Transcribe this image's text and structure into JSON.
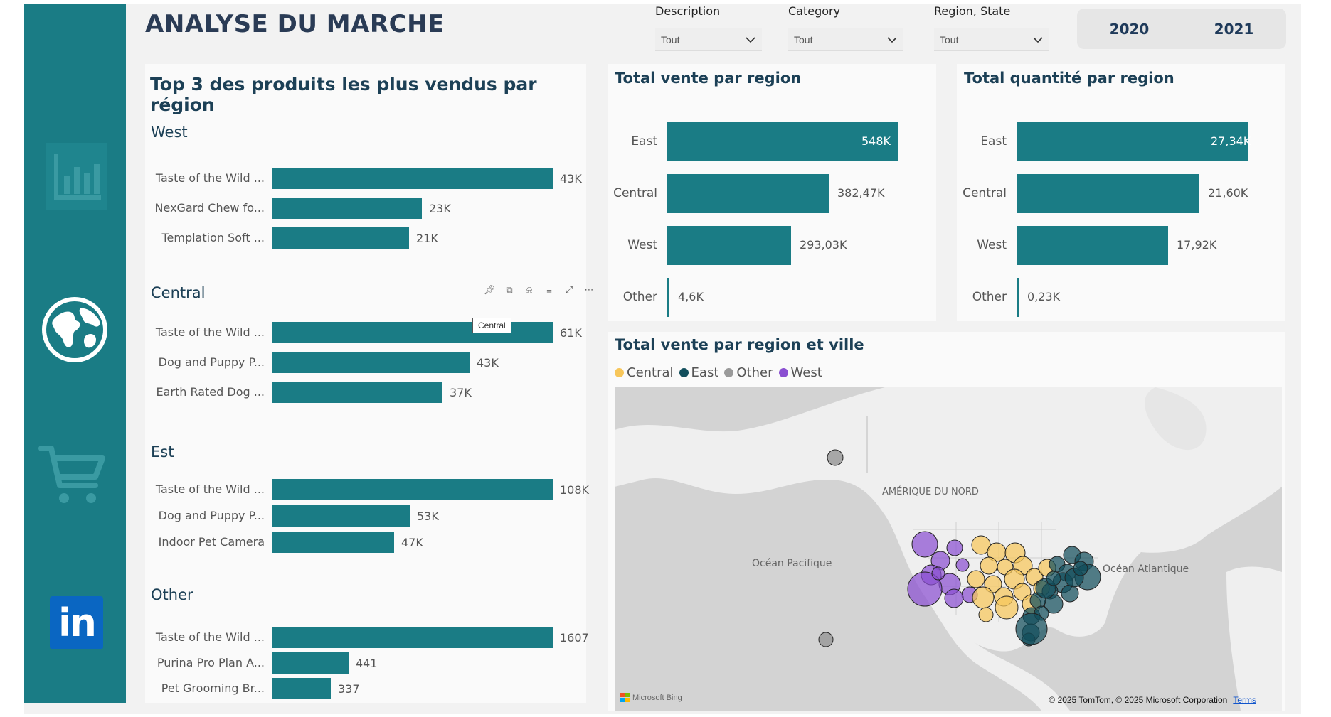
{
  "page": {
    "title": "ANALYSE DU MARCHE"
  },
  "nav": {
    "items": [
      {
        "name": "chart-icon"
      },
      {
        "name": "globe-icon"
      },
      {
        "name": "cart-icon"
      },
      {
        "name": "linkedin-icon",
        "label": "in"
      }
    ]
  },
  "slicers": {
    "description": {
      "label": "Description",
      "value": "Tout"
    },
    "category": {
      "label": "Category",
      "value": "Tout"
    },
    "region": {
      "label": "Region, State",
      "value": "Tout"
    }
  },
  "years": [
    "2020",
    "2021"
  ],
  "colors": {
    "accent": "#1a7c85",
    "central": "#f7c65a",
    "east": "#124e5c",
    "other": "#9a9a9a",
    "west": "#8a4fd1"
  },
  "top3": {
    "title": "Top 3 des produits les plus vendus par région",
    "tooltip": "Central",
    "groups": [
      {
        "name": "West",
        "items": [
          {
            "label": "Taste of the Wild ...",
            "value": 43,
            "display": "43K"
          },
          {
            "label": "NexGard Chew fo...",
            "value": 23,
            "display": "23K"
          },
          {
            "label": "Templation Soft ...",
            "value": 21,
            "display": "21K"
          }
        ]
      },
      {
        "name": "Central",
        "items": [
          {
            "label": "Taste of the Wild ...",
            "value": 61,
            "display": "61K"
          },
          {
            "label": "Dog and Puppy P...",
            "value": 43,
            "display": "43K"
          },
          {
            "label": "Earth Rated Dog ...",
            "value": 37,
            "display": "37K"
          }
        ]
      },
      {
        "name": "Est",
        "items": [
          {
            "label": "Taste of the Wild ...",
            "value": 108,
            "display": "108K"
          },
          {
            "label": "Dog and Puppy P...",
            "value": 53,
            "display": "53K"
          },
          {
            "label": "Indoor Pet Camera",
            "value": 47,
            "display": "47K"
          }
        ]
      },
      {
        "name": "Other",
        "items": [
          {
            "label": "Taste of the Wild ...",
            "value": 1607,
            "display": "1607"
          },
          {
            "label": "Purina Pro Plan A...",
            "value": 441,
            "display": "441"
          },
          {
            "label": "Pet Grooming Br...",
            "value": 337,
            "display": "337"
          }
        ]
      }
    ]
  },
  "chart_data": [
    {
      "type": "bar",
      "title": "Total vente par region",
      "categories": [
        "East",
        "Central",
        "West",
        "Other"
      ],
      "values": [
        548,
        382.47,
        293.03,
        4.6
      ],
      "labels": [
        "548K",
        "382,47K",
        "293,03K",
        "4,6K"
      ]
    },
    {
      "type": "bar",
      "title": "Total quantité par region",
      "categories": [
        "East",
        "Central",
        "West",
        "Other"
      ],
      "values": [
        27.34,
        21.6,
        17.92,
        0.23
      ],
      "labels": [
        "27,34K",
        "21,60K",
        "17,92K",
        "0,23K"
      ]
    }
  ],
  "map": {
    "title": "Total vente par region et ville",
    "legend": [
      "Central",
      "East",
      "Other",
      "West"
    ],
    "labels": {
      "continent": "AMÉRIQUE DU NORD",
      "pacific": "Océan Pacifique",
      "atlantic": "Océan Atlantique"
    },
    "credit": "© 2025 TomTom, © 2025 Microsoft Corporation",
    "terms": "Terms",
    "bing": "Microsoft Bing"
  }
}
